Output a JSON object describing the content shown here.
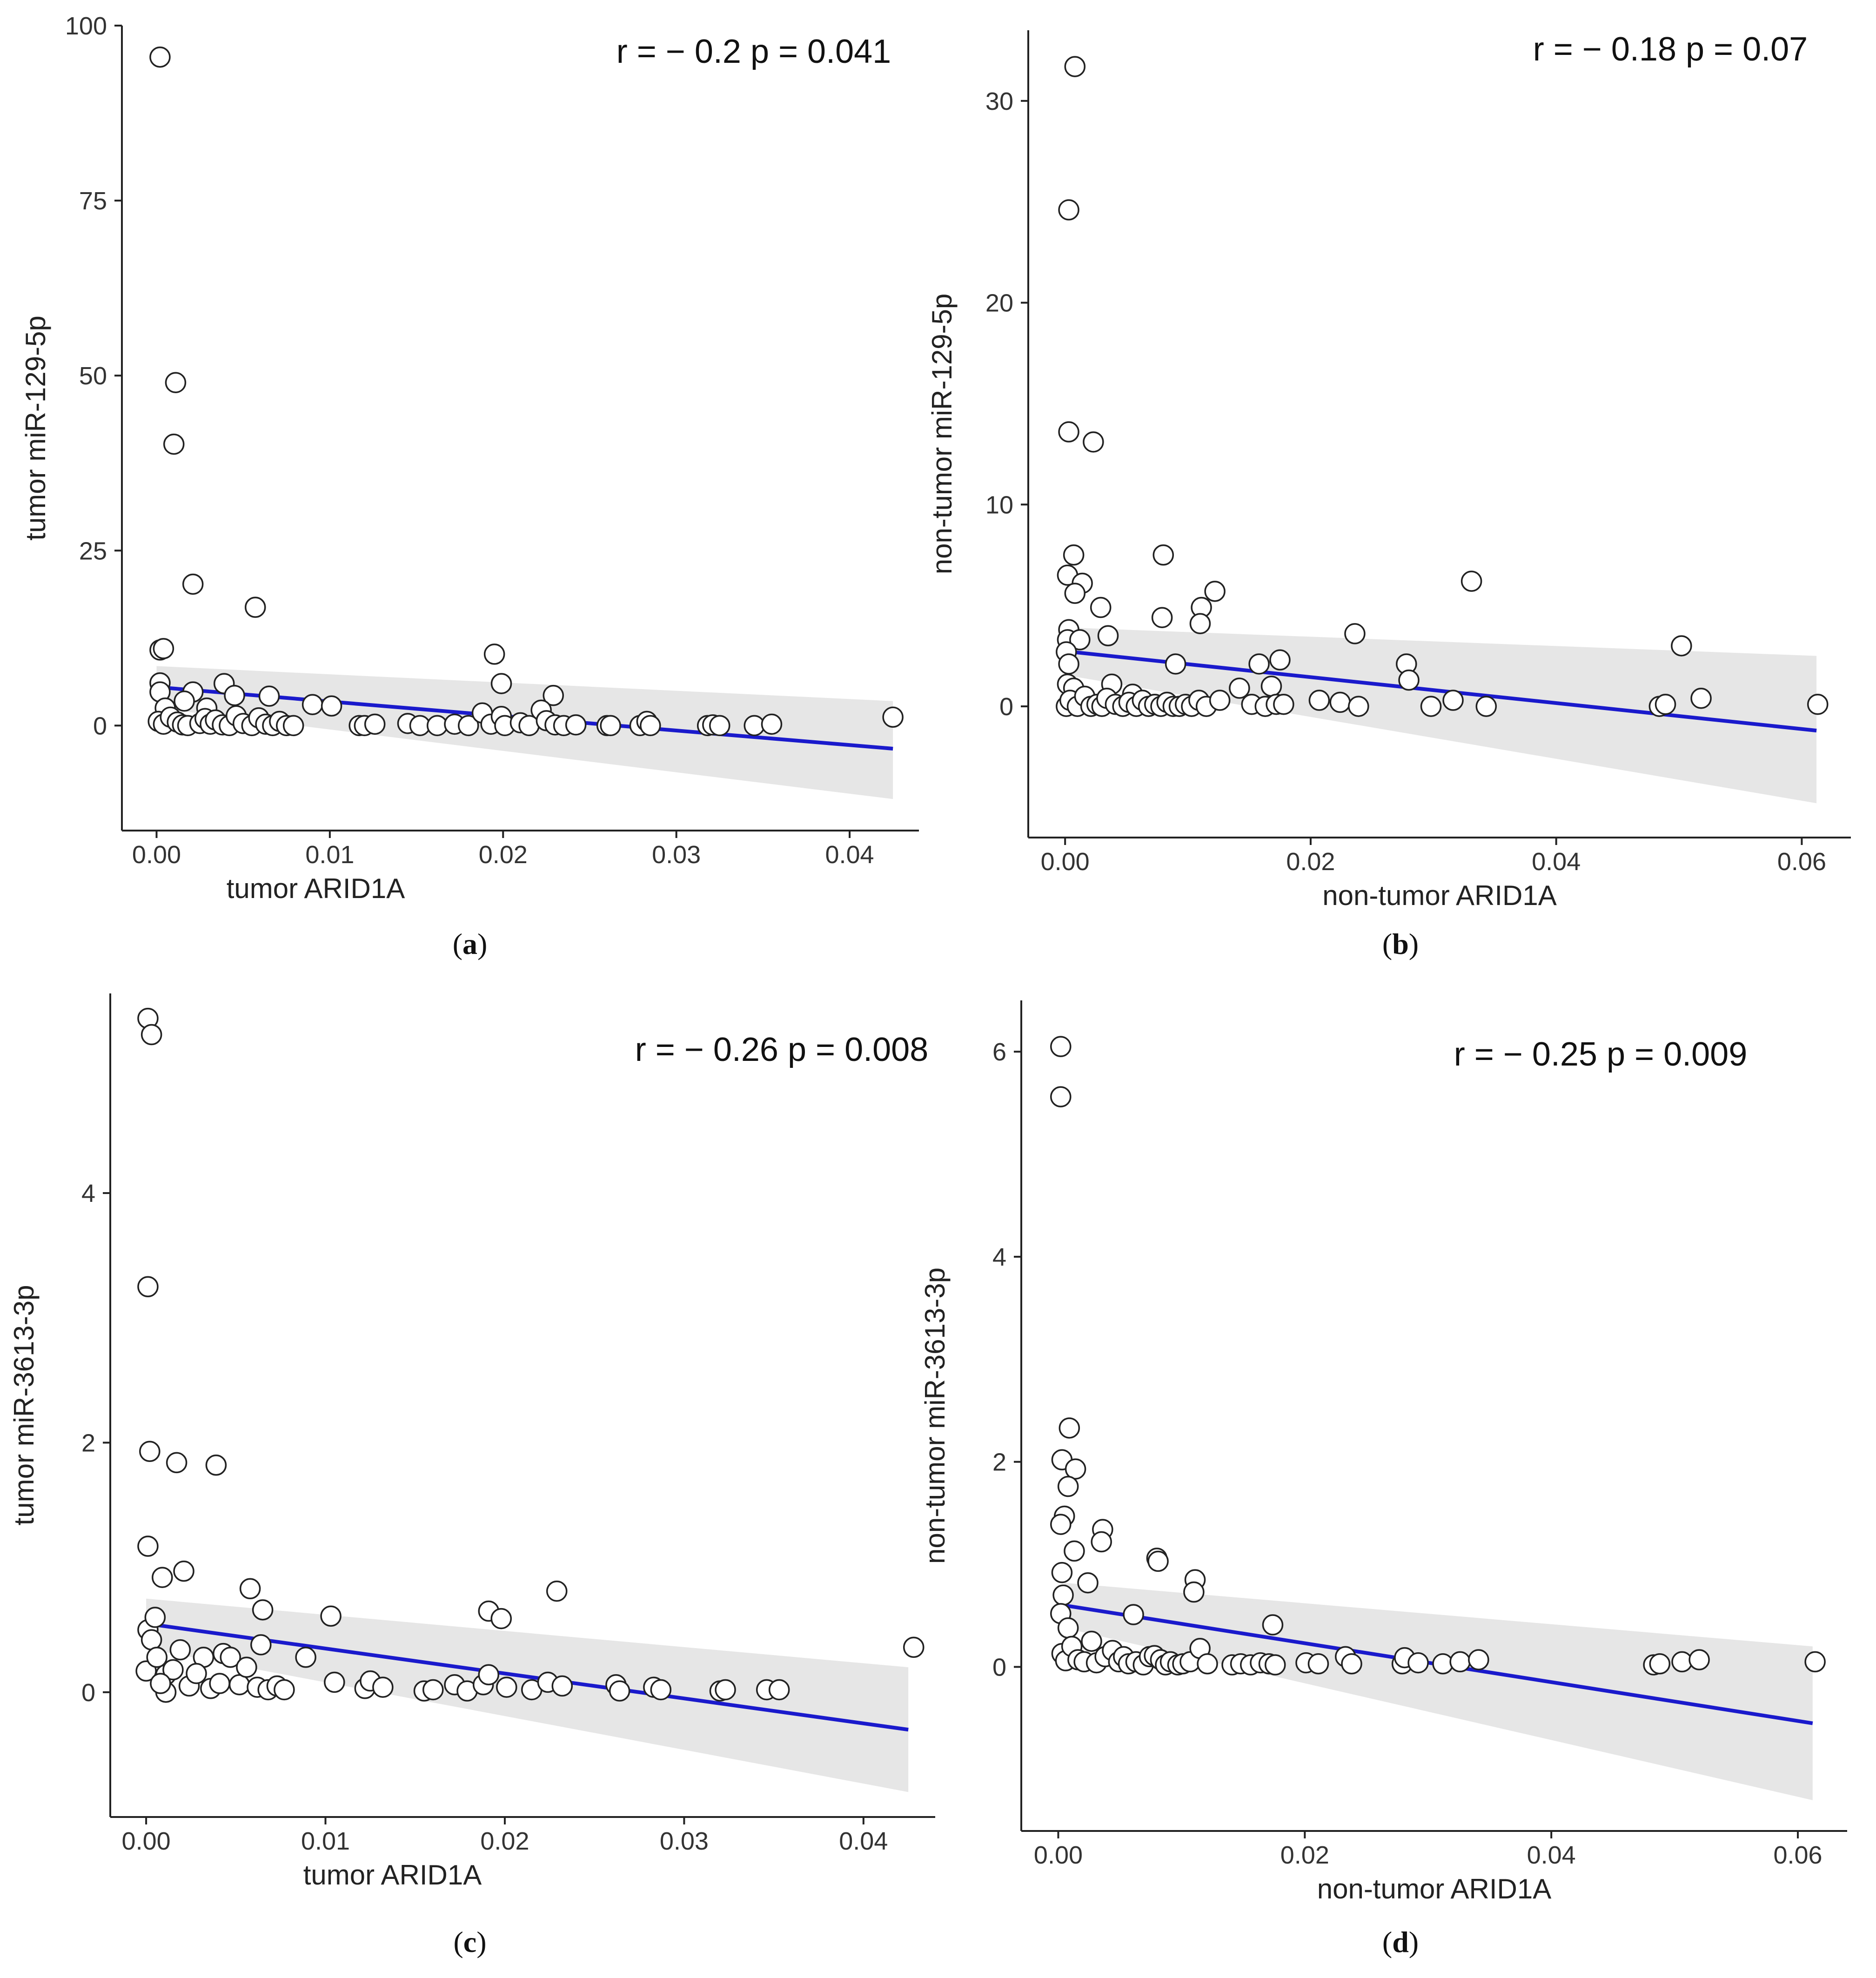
{
  "figure": {
    "panels": [
      "a",
      "b",
      "c",
      "d"
    ]
  },
  "chart_data": [
    {
      "id": "a",
      "type": "scatter",
      "caption": "a",
      "annotation": "r = − 0.2   p = 0.041",
      "xlabel": "tumor  ARID1A",
      "ylabel": "tumor  miR-129-5p",
      "xlim": [
        -0.002,
        0.044
      ],
      "ylim": [
        -15,
        100
      ],
      "xticks": [
        0.0,
        0.01,
        0.02,
        0.03,
        0.04
      ],
      "xtick_labels": [
        "0.00",
        "0.01",
        "0.02",
        "0.03",
        "0.04"
      ],
      "yticks": [
        0,
        25,
        50,
        75,
        100
      ],
      "ytick_labels": [
        "0",
        "25",
        "50",
        "75",
        "100"
      ],
      "fit_line": {
        "x": [
          0.0,
          0.0425
        ],
        "y": [
          5.5,
          -3.3
        ]
      },
      "ci_band": {
        "x": [
          0.0,
          0.0425
        ],
        "upper": [
          8.5,
          3.5
        ],
        "lower": [
          2.5,
          -10.5
        ]
      },
      "colors": {
        "line": "#1a1acc",
        "band": "#e6e6e6",
        "point_fill": "#ffffff",
        "point_edge": "#222222"
      },
      "points": [
        [
          0.0002,
          95.5
        ],
        [
          0.0011,
          49
        ],
        [
          0.001,
          40.2
        ],
        [
          0.0021,
          20.2
        ],
        [
          0.0057,
          16.9
        ],
        [
          0.0002,
          10.8
        ],
        [
          0.0004,
          11
        ],
        [
          0.0195,
          10.2
        ],
        [
          0.0199,
          6
        ],
        [
          0.0229,
          4.3
        ],
        [
          0.0222,
          2.2
        ],
        [
          0.0039,
          6
        ],
        [
          0.0002,
          6.1
        ],
        [
          0.0002,
          4.8
        ],
        [
          0.0021,
          4.8
        ],
        [
          0.0045,
          4.3
        ],
        [
          0.0065,
          4.2
        ],
        [
          0.0016,
          3.5
        ],
        [
          0.0029,
          2.5
        ],
        [
          0.0005,
          2.5
        ],
        [
          0.009,
          3
        ],
        [
          0.0101,
          2.8
        ],
        [
          0.0001,
          0.6
        ],
        [
          0.0004,
          0.2
        ],
        [
          0.0008,
          1.2
        ],
        [
          0.0012,
          0.5
        ],
        [
          0.0015,
          0.1
        ],
        [
          0.0018,
          0
        ],
        [
          0.0025,
          0.3
        ],
        [
          0.0028,
          1
        ],
        [
          0.0031,
          0.2
        ],
        [
          0.0034,
          0.8
        ],
        [
          0.0038,
          0.1
        ],
        [
          0.0042,
          0
        ],
        [
          0.0046,
          1.4
        ],
        [
          0.005,
          0.3
        ],
        [
          0.0055,
          0
        ],
        [
          0.0059,
          1.1
        ],
        [
          0.0063,
          0.2
        ],
        [
          0.0067,
          0
        ],
        [
          0.0071,
          0.6
        ],
        [
          0.0075,
          0
        ],
        [
          0.0079,
          0
        ],
        [
          0.0117,
          0
        ],
        [
          0.012,
          0
        ],
        [
          0.0126,
          0.2
        ],
        [
          0.0145,
          0.3
        ],
        [
          0.0152,
          0
        ],
        [
          0.0162,
          0
        ],
        [
          0.0172,
          0.2
        ],
        [
          0.018,
          0
        ],
        [
          0.0188,
          1.8
        ],
        [
          0.0193,
          0.2
        ],
        [
          0.0199,
          1.3
        ],
        [
          0.0201,
          0
        ],
        [
          0.021,
          0.4
        ],
        [
          0.0215,
          0
        ],
        [
          0.0225,
          0.7
        ],
        [
          0.023,
          0.1
        ],
        [
          0.0235,
          0
        ],
        [
          0.0242,
          0.1
        ],
        [
          0.026,
          0
        ],
        [
          0.0262,
          0
        ],
        [
          0.0279,
          0
        ],
        [
          0.0283,
          0.6
        ],
        [
          0.0285,
          0
        ],
        [
          0.0318,
          0
        ],
        [
          0.0321,
          0.1
        ],
        [
          0.0325,
          0
        ],
        [
          0.0345,
          0
        ],
        [
          0.0355,
          0.2
        ],
        [
          0.0425,
          1.2
        ]
      ]
    },
    {
      "id": "b",
      "type": "scatter",
      "caption": "b",
      "annotation": "r = − 0.18   p = 0.07",
      "xlabel": "non-tumor  ARID1A",
      "ylabel": "non-tumor  miR-129-5p",
      "xlim": [
        -0.003,
        0.064
      ],
      "ylim": [
        -6.5,
        33.5
      ],
      "xticks": [
        0.0,
        0.02,
        0.04,
        0.06
      ],
      "xtick_labels": [
        "0.00",
        "0.02",
        "0.04",
        "0.06"
      ],
      "yticks": [
        0,
        10,
        20,
        30
      ],
      "ytick_labels": [
        "0",
        "10",
        "20",
        "30"
      ],
      "fit_line": {
        "x": [
          0.0005,
          0.0612
        ],
        "y": [
          2.7,
          -1.2
        ]
      },
      "ci_band": {
        "x": [
          0.0005,
          0.0612
        ],
        "upper": [
          3.9,
          2.5
        ],
        "lower": [
          1.5,
          -4.8
        ]
      },
      "colors": {
        "line": "#1a1acc",
        "band": "#e6e6e6",
        "point_fill": "#ffffff",
        "point_edge": "#222222"
      },
      "points": [
        [
          0.0008,
          31.7
        ],
        [
          0.0003,
          24.6
        ],
        [
          0.0003,
          13.6
        ],
        [
          0.0023,
          13.1
        ],
        [
          0.0007,
          7.5
        ],
        [
          0.008,
          7.5
        ],
        [
          0.0002,
          6.5
        ],
        [
          0.0014,
          6.1
        ],
        [
          0.0008,
          5.6
        ],
        [
          0.0122,
          5.7
        ],
        [
          0.0029,
          4.9
        ],
        [
          0.0111,
          4.9
        ],
        [
          0.0079,
          4.4
        ],
        [
          0.011,
          4.1
        ],
        [
          0.0003,
          3.8
        ],
        [
          0.0035,
          3.5
        ],
        [
          0.0236,
          3.6
        ],
        [
          0.0331,
          6.2
        ],
        [
          0.0502,
          3
        ],
        [
          0.0002,
          3.3
        ],
        [
          0.0012,
          3.3
        ],
        [
          0.0001,
          2.7
        ],
        [
          0.0003,
          2.1
        ],
        [
          0.009,
          2.1
        ],
        [
          0.0175,
          2.3
        ],
        [
          0.0158,
          2.1
        ],
        [
          0.0278,
          2.1
        ],
        [
          0.028,
          1.3
        ],
        [
          0.0002,
          1.1
        ],
        [
          0.0007,
          0.9
        ],
        [
          0.0038,
          1.1
        ],
        [
          0.0055,
          0.6
        ],
        [
          0.0142,
          0.9
        ],
        [
          0.0168,
          1
        ],
        [
          0.0001,
          0
        ],
        [
          0.0004,
          0.3
        ],
        [
          0.001,
          0
        ],
        [
          0.0016,
          0.5
        ],
        [
          0.0021,
          0
        ],
        [
          0.0026,
          0.1
        ],
        [
          0.003,
          0
        ],
        [
          0.0034,
          0.4
        ],
        [
          0.0041,
          0.1
        ],
        [
          0.0047,
          0
        ],
        [
          0.0052,
          0.2
        ],
        [
          0.0058,
          0
        ],
        [
          0.0063,
          0.3
        ],
        [
          0.0068,
          0
        ],
        [
          0.0073,
          0.1
        ],
        [
          0.0078,
          0
        ],
        [
          0.0083,
          0.2
        ],
        [
          0.0088,
          0
        ],
        [
          0.0093,
          0
        ],
        [
          0.0098,
          0.1
        ],
        [
          0.0103,
          0
        ],
        [
          0.0109,
          0.3
        ],
        [
          0.0115,
          0
        ],
        [
          0.0126,
          0.3
        ],
        [
          0.0152,
          0.1
        ],
        [
          0.0163,
          0
        ],
        [
          0.0172,
          0.1
        ],
        [
          0.0178,
          0.1
        ],
        [
          0.0207,
          0.3
        ],
        [
          0.0224,
          0.2
        ],
        [
          0.0239,
          0
        ],
        [
          0.0298,
          0
        ],
        [
          0.0316,
          0.3
        ],
        [
          0.0343,
          0
        ],
        [
          0.0484,
          0
        ],
        [
          0.0489,
          0.1
        ],
        [
          0.0518,
          0.4
        ],
        [
          0.0613,
          0.1
        ]
      ]
    },
    {
      "id": "c",
      "type": "scatter",
      "caption": "c",
      "annotation": "r = − 0.26   p = 0.008",
      "xlabel": "tumor  ARID1A",
      "ylabel": "tumor  miR-3613-3p",
      "xlim": [
        -0.002,
        0.044
      ],
      "ylim": [
        -1.0,
        5.6
      ],
      "xticks": [
        0.0,
        0.01,
        0.02,
        0.03,
        0.04
      ],
      "xtick_labels": [
        "0.00",
        "0.01",
        "0.02",
        "0.03",
        "0.04"
      ],
      "yticks": [
        0,
        2,
        4
      ],
      "ytick_labels": [
        "0",
        "2",
        "4"
      ],
      "fit_line": {
        "x": [
          0.0,
          0.0425
        ],
        "y": [
          0.55,
          -0.3
        ]
      },
      "ci_band": {
        "x": [
          0.0,
          0.0425
        ],
        "upper": [
          0.75,
          0.2
        ],
        "lower": [
          0.35,
          -0.8
        ]
      },
      "colors": {
        "line": "#1a1acc",
        "band": "#e6e6e6",
        "point_fill": "#ffffff",
        "point_edge": "#222222"
      },
      "points": [
        [
          0.0001,
          5.4
        ],
        [
          0.0003,
          5.27
        ],
        [
          0.0001,
          3.25
        ],
        [
          0.0002,
          1.93
        ],
        [
          0.0017,
          1.84
        ],
        [
          0.0039,
          1.82
        ],
        [
          0.0001,
          1.17
        ],
        [
          0.0021,
          0.97
        ],
        [
          0.0009,
          0.92
        ],
        [
          0.0058,
          0.83
        ],
        [
          0.0065,
          0.66
        ],
        [
          0.0103,
          0.61
        ],
        [
          0.0191,
          0.65
        ],
        [
          0.0198,
          0.59
        ],
        [
          0.0229,
          0.81
        ],
        [
          0.0428,
          0.36
        ],
        [
          0.0001,
          0.5
        ],
        [
          0.0005,
          0.6
        ],
        [
          0.0003,
          0.42
        ],
        [
          0.0019,
          0.34
        ],
        [
          0.0032,
          0.28
        ],
        [
          0.0043,
          0.31
        ],
        [
          0.0047,
          0.28
        ],
        [
          0.0064,
          0.38
        ],
        [
          0.0089,
          0.28
        ],
        [
          0.0,
          0.17
        ],
        [
          0.0006,
          0.28
        ],
        [
          0.0011,
          0.14
        ],
        [
          0.0015,
          0.18
        ],
        [
          0.0024,
          0.05
        ],
        [
          0.0028,
          0.15
        ],
        [
          0.0036,
          0.03
        ],
        [
          0.0041,
          0.07
        ],
        [
          0.0052,
          0.06
        ],
        [
          0.0056,
          0.2
        ],
        [
          0.0062,
          0.04
        ],
        [
          0.0068,
          0.02
        ],
        [
          0.0073,
          0.05
        ],
        [
          0.0077,
          0.02
        ],
        [
          0.0011,
          0
        ],
        [
          0.0008,
          0.07
        ],
        [
          0.0105,
          0.08
        ],
        [
          0.0122,
          0.03
        ],
        [
          0.0125,
          0.09
        ],
        [
          0.0132,
          0.04
        ],
        [
          0.0155,
          0.01
        ],
        [
          0.016,
          0.02
        ],
        [
          0.0172,
          0.06
        ],
        [
          0.0179,
          0.01
        ],
        [
          0.0188,
          0.06
        ],
        [
          0.0191,
          0.14
        ],
        [
          0.0201,
          0.04
        ],
        [
          0.0215,
          0.02
        ],
        [
          0.0224,
          0.08
        ],
        [
          0.0232,
          0.05
        ],
        [
          0.0262,
          0.06
        ],
        [
          0.0283,
          0.04
        ],
        [
          0.0287,
          0.02
        ],
        [
          0.032,
          0.01
        ],
        [
          0.0323,
          0.02
        ],
        [
          0.0346,
          0.02
        ],
        [
          0.0353,
          0.02
        ],
        [
          0.0264,
          0.01
        ]
      ]
    },
    {
      "id": "d",
      "type": "scatter",
      "caption": "d",
      "annotation": "r = − 0.25   p = 0.009",
      "xlabel": "non-tumor  ARID1A",
      "ylabel": "non-tumor  miR-3613-3p",
      "xlim": [
        -0.003,
        0.064
      ],
      "ylim": [
        -1.6,
        6.5
      ],
      "xticks": [
        0.0,
        0.02,
        0.04,
        0.06
      ],
      "xtick_labels": [
        "0.00",
        "0.02",
        "0.04",
        "0.06"
      ],
      "yticks": [
        0,
        2,
        4,
        6
      ],
      "ytick_labels": [
        "0",
        "2",
        "4",
        "6"
      ],
      "fit_line": {
        "x": [
          0.0005,
          0.0612
        ],
        "y": [
          0.6,
          -0.55
        ]
      },
      "ci_band": {
        "x": [
          0.0005,
          0.0612
        ],
        "upper": [
          0.82,
          0.2
        ],
        "lower": [
          0.38,
          -1.3
        ]
      },
      "colors": {
        "line": "#1a1acc",
        "band": "#e6e6e6",
        "point_fill": "#ffffff",
        "point_edge": "#222222"
      },
      "points": [
        [
          0.0002,
          6.05
        ],
        [
          0.0002,
          5.56
        ],
        [
          0.0009,
          2.33
        ],
        [
          0.0003,
          2.02
        ],
        [
          0.0014,
          1.93
        ],
        [
          0.0008,
          1.76
        ],
        [
          0.0005,
          1.47
        ],
        [
          0.0036,
          1.34
        ],
        [
          0.0035,
          1.22
        ],
        [
          0.0002,
          1.39
        ],
        [
          0.0013,
          1.13
        ],
        [
          0.008,
          1.06
        ],
        [
          0.0081,
          1.03
        ],
        [
          0.0111,
          0.85
        ],
        [
          0.011,
          0.73
        ],
        [
          0.0024,
          0.82
        ],
        [
          0.0003,
          0.92
        ],
        [
          0.0004,
          0.7
        ],
        [
          0.0061,
          0.51
        ],
        [
          0.0174,
          0.41
        ],
        [
          0.0002,
          0.52
        ],
        [
          0.0008,
          0.38
        ],
        [
          0.0003,
          0.13
        ],
        [
          0.0006,
          0.06
        ],
        [
          0.0011,
          0.2
        ],
        [
          0.0016,
          0.07
        ],
        [
          0.0021,
          0.05
        ],
        [
          0.0027,
          0.25
        ],
        [
          0.0031,
          0.04
        ],
        [
          0.0038,
          0.1
        ],
        [
          0.0044,
          0.16
        ],
        [
          0.0049,
          0.05
        ],
        [
          0.0053,
          0.1
        ],
        [
          0.0057,
          0.03
        ],
        [
          0.0063,
          0.05
        ],
        [
          0.0069,
          0.02
        ],
        [
          0.0074,
          0.1
        ],
        [
          0.0078,
          0.11
        ],
        [
          0.0083,
          0.07
        ],
        [
          0.0087,
          0.02
        ],
        [
          0.0091,
          0.05
        ],
        [
          0.0097,
          0.02
        ],
        [
          0.0101,
          0.03
        ],
        [
          0.0107,
          0.05
        ],
        [
          0.0115,
          0.18
        ],
        [
          0.0121,
          0.03
        ],
        [
          0.0141,
          0.02
        ],
        [
          0.0148,
          0.03
        ],
        [
          0.0156,
          0.02
        ],
        [
          0.0164,
          0.04
        ],
        [
          0.0171,
          0.03
        ],
        [
          0.0176,
          0.02
        ],
        [
          0.0201,
          0.04
        ],
        [
          0.0211,
          0.03
        ],
        [
          0.0233,
          0.1
        ],
        [
          0.0238,
          0.03
        ],
        [
          0.0279,
          0.03
        ],
        [
          0.0281,
          0.09
        ],
        [
          0.0292,
          0.04
        ],
        [
          0.0312,
          0.03
        ],
        [
          0.0326,
          0.05
        ],
        [
          0.0341,
          0.07
        ],
        [
          0.0483,
          0.02
        ],
        [
          0.0488,
          0.03
        ],
        [
          0.0506,
          0.05
        ],
        [
          0.052,
          0.07
        ],
        [
          0.0614,
          0.05
        ]
      ]
    }
  ]
}
